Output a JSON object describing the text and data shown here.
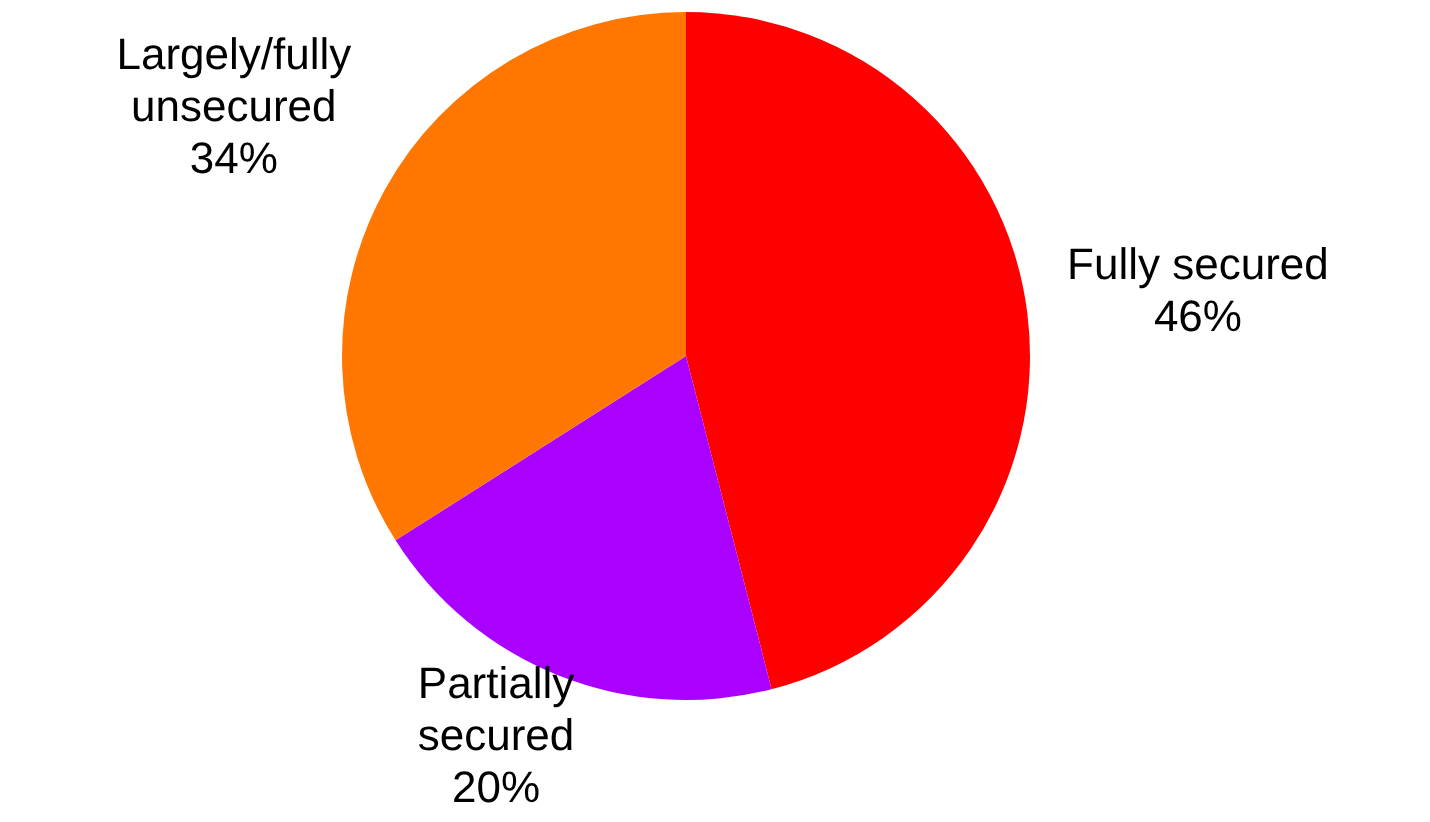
{
  "chart_data": {
    "type": "pie",
    "categories": [
      "Fully secured",
      "Partially\nsecured",
      "Largely/fully\nunsecured"
    ],
    "values": [
      46,
      20,
      34
    ],
    "colors": [
      "#ff0000",
      "#aa00ff",
      "#ff7700"
    ],
    "value_labels": [
      "46%",
      "20%",
      "34%"
    ]
  }
}
